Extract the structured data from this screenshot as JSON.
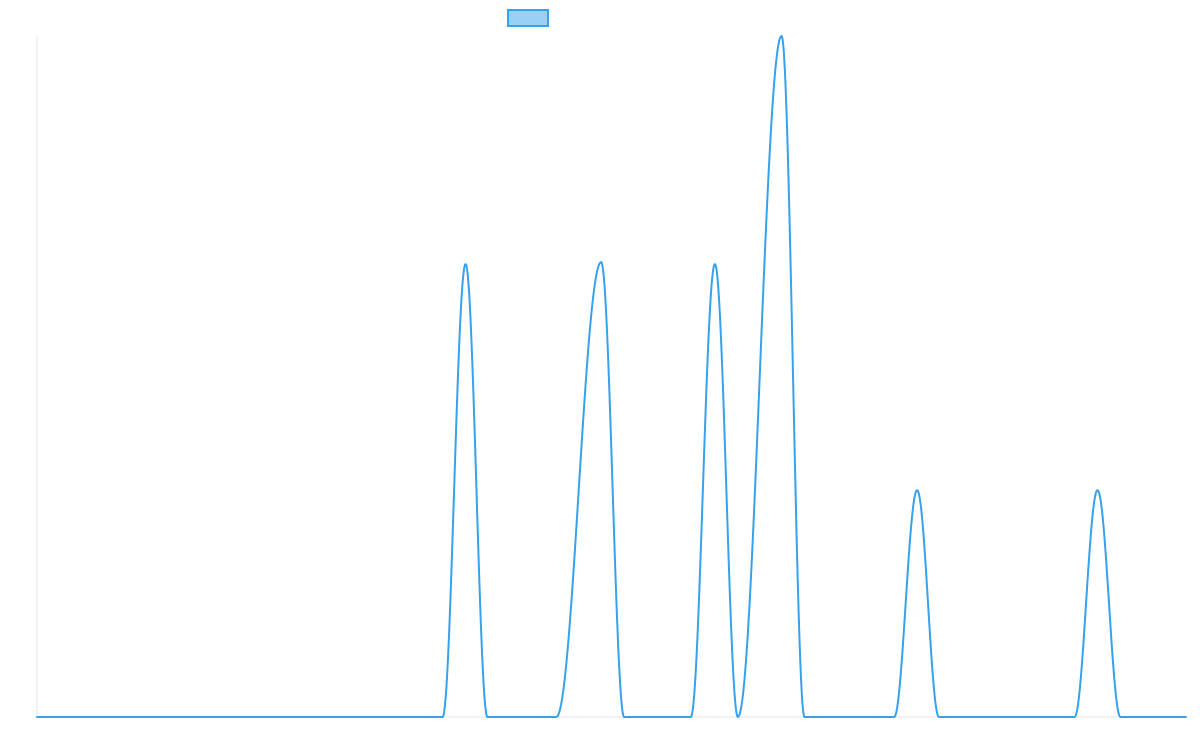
{
  "chart_data": {
    "type": "line",
    "title": "",
    "xlabel": "",
    "ylabel": "",
    "grid": false,
    "legend_position": "top",
    "xlim": [
      0,
      100
    ],
    "ylim": [
      0,
      1
    ],
    "series": [
      {
        "name": "",
        "color": "#36a2eb",
        "fill_color": "#9ad0f5",
        "peaks": [
          {
            "start": 35.3,
            "center": 37.3,
            "end": 39.2,
            "height": 0.665
          },
          {
            "start": 45.2,
            "center": 49.1,
            "end": 51.1,
            "height": 0.668
          },
          {
            "start": 56.9,
            "center": 59.0,
            "end": 61.0,
            "height": 0.665
          },
          {
            "start": 61.0,
            "center": 64.8,
            "end": 66.8,
            "height": 1.0
          },
          {
            "start": 74.6,
            "center": 76.6,
            "end": 78.5,
            "height": 0.333
          },
          {
            "start": 90.3,
            "center": 92.3,
            "end": 94.3,
            "height": 0.333
          }
        ]
      }
    ]
  }
}
